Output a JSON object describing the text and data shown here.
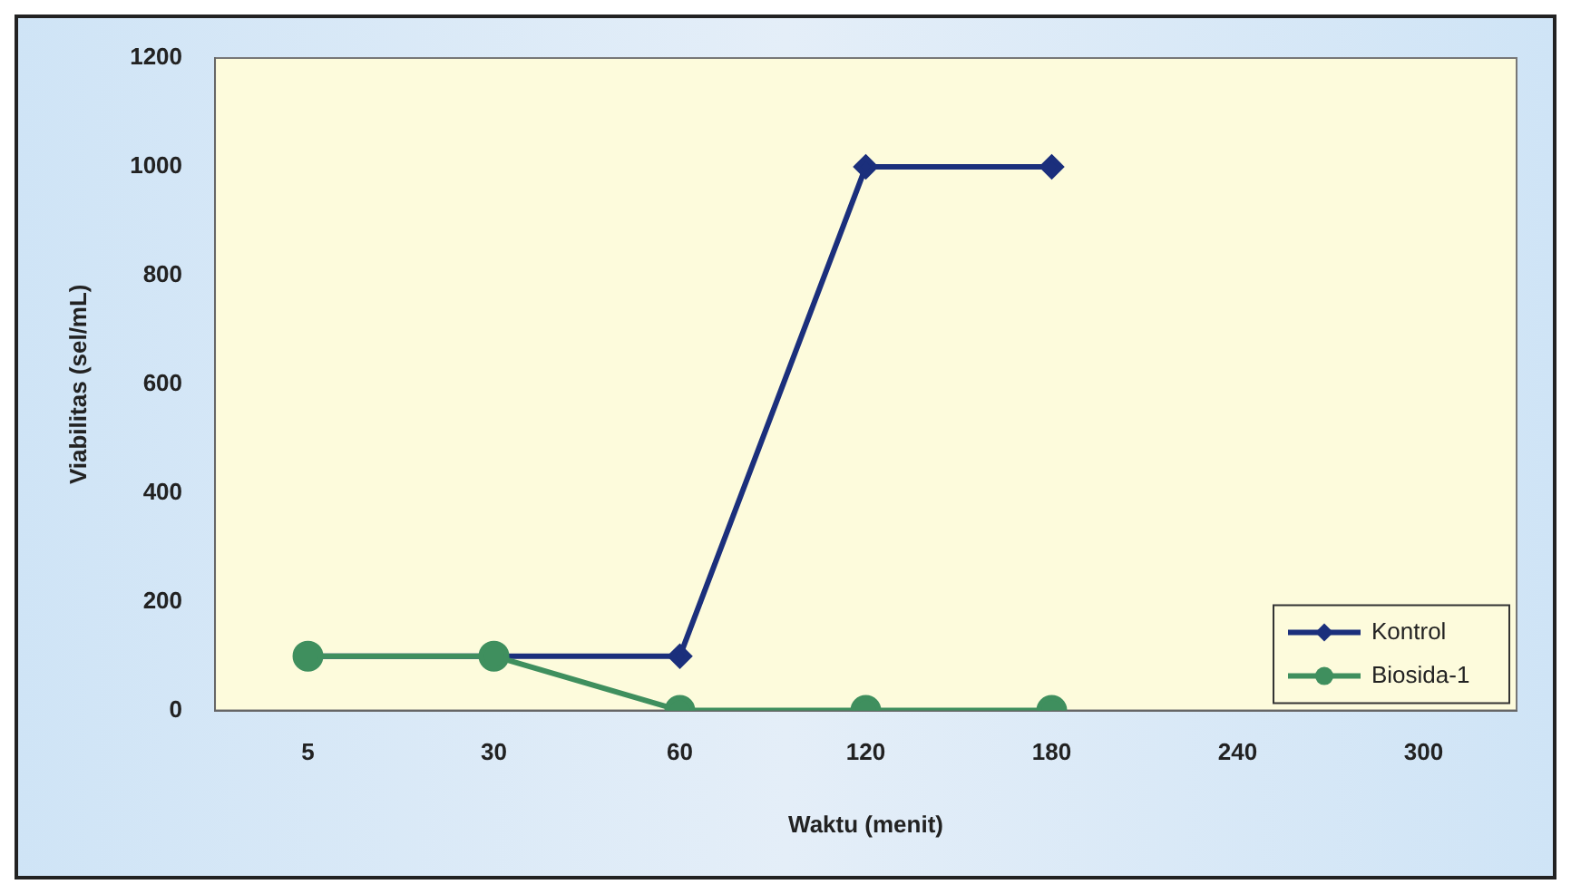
{
  "chart_data": {
    "type": "line",
    "xlabel": "Waktu (menit)",
    "ylabel": "Viabilitas (sel/mL)",
    "categories": [
      "5",
      "30",
      "60",
      "120",
      "180",
      "240",
      "300"
    ],
    "series": [
      {
        "name": "Kontrol",
        "color": "#1b2f7c",
        "marker": "diamond",
        "values": [
          100,
          100,
          100,
          1000,
          1000,
          null,
          null
        ]
      },
      {
        "name": "Biosida-1",
        "color": "#3f8f5e",
        "marker": "circle",
        "values": [
          100,
          100,
          0,
          0,
          0,
          null,
          null
        ]
      }
    ],
    "ylim": [
      0,
      1200
    ],
    "yticks": [
      0,
      200,
      400,
      600,
      800,
      1000,
      1200
    ],
    "grid": false,
    "legend": "bottom right",
    "line_style": "solid"
  }
}
